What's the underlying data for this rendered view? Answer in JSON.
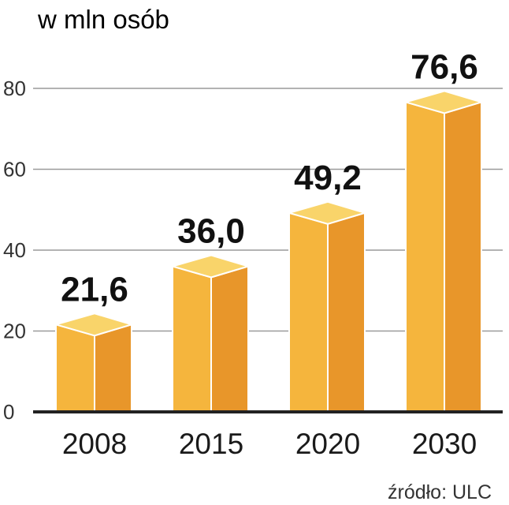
{
  "chart_data": {
    "type": "bar",
    "unit_label": "w mln osób",
    "categories": [
      "2008",
      "2015",
      "2020",
      "2030"
    ],
    "values": [
      21.6,
      36.0,
      49.2,
      76.6
    ],
    "value_labels": [
      "21,6",
      "36,0",
      "49,2",
      "76,6"
    ],
    "yticks": [
      "0",
      "20",
      "40",
      "60",
      "80"
    ],
    "ylim": [
      0,
      80
    ],
    "grid": true,
    "source": "źródło: ULC",
    "colors": {
      "front": "#F5B53D",
      "side": "#E8962A",
      "top": "#F9D46A",
      "edge": "#FFFFFF",
      "axis": "#222222",
      "grid": "#9a9a9a"
    }
  }
}
